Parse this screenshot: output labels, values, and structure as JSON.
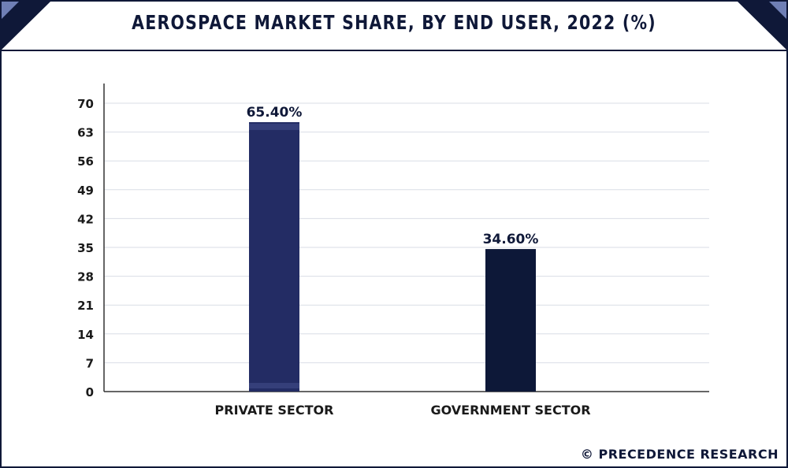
{
  "header": {
    "title": "AEROSPACE MARKET SHARE, BY END USER, 2022 (%)"
  },
  "footer": {
    "credit": "© PRECEDENCE RESEARCH"
  },
  "colors": {
    "private_bar": "#232c64",
    "government_bar": "#0d1838",
    "frame": "#0f1838",
    "corner_accent": "#6f7fb5",
    "grid": "#d9dde6",
    "axis": "#333333"
  },
  "chart_data": {
    "type": "bar",
    "categories": [
      "PRIVATE SECTOR",
      "GOVERNMENT SECTOR"
    ],
    "values": [
      65.4,
      34.6
    ],
    "data_labels": [
      "65.40%",
      "34.60%"
    ],
    "y_ticks": [
      "0",
      "7",
      "14",
      "21",
      "28",
      "35",
      "42",
      "49",
      "56",
      "63",
      "70"
    ],
    "ylim": [
      0,
      70
    ],
    "grid": true,
    "title": "AEROSPACE MARKET SHARE, BY END USER, 2022 (%)",
    "xlabel": "",
    "ylabel": ""
  }
}
